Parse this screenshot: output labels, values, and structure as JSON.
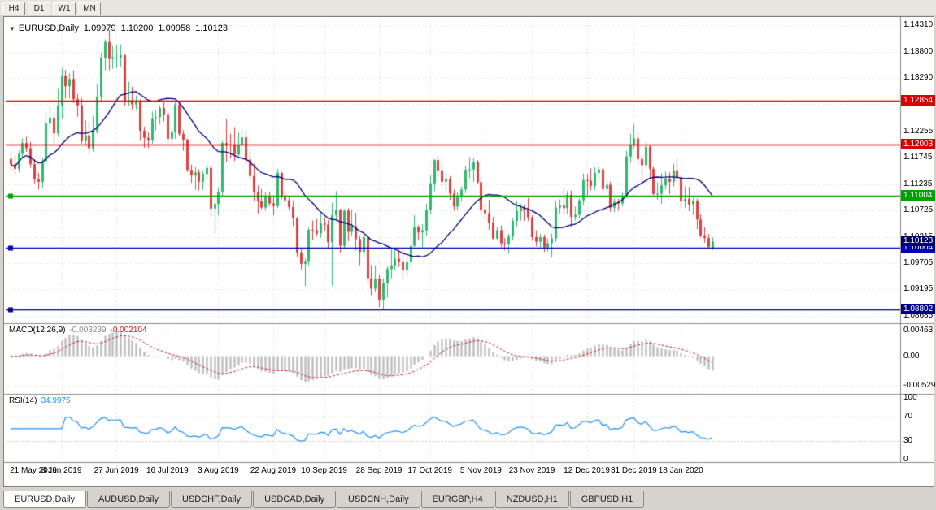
{
  "toolbar": {
    "timeframes": [
      "H4",
      "D1",
      "W1",
      "MN"
    ]
  },
  "chart": {
    "dropdown_icon": "▼",
    "symbol_period": "EURUSD,Daily",
    "ohlc": {
      "open": "1.09979",
      "high": "1.10200",
      "low": "1.09958",
      "close": "1.10123"
    }
  },
  "price_scale": {
    "ticks": [
      {
        "label": "1.14310",
        "value": 1.1431
      },
      {
        "label": "1.13800",
        "value": 1.138
      },
      {
        "label": "1.13290",
        "value": 1.1329
      },
      {
        "label": "1.12780",
        "value": 1.1278
      },
      {
        "label": "1.12255",
        "value": 1.12255
      },
      {
        "label": "1.11745",
        "value": 1.11745
      },
      {
        "label": "1.11235",
        "value": 1.11235
      },
      {
        "label": "1.10725",
        "value": 1.10725
      },
      {
        "label": "1.10215",
        "value": 1.10215
      },
      {
        "label": "1.09705",
        "value": 1.09705
      },
      {
        "label": "1.09195",
        "value": 1.09195
      },
      {
        "label": "1.08685",
        "value": 1.08685
      }
    ]
  },
  "levels": [
    {
      "label": "1.12854",
      "price": 1.12854,
      "color": "#d90000",
      "marker": false
    },
    {
      "label": "1.12003",
      "price": 1.12003,
      "color": "#d90000",
      "marker": false
    },
    {
      "label": "1.11004",
      "price": 1.11004,
      "color": "#00a000",
      "marker": true
    },
    {
      "label": "1.10004",
      "price": 1.10004,
      "color": "#0000b8",
      "marker": true
    },
    {
      "label": "1.08802",
      "price": 1.08802,
      "color": "#00008b",
      "marker": true
    }
  ],
  "current_price_tag": {
    "label": "1.10123",
    "price": 1.10123,
    "color": "#00006b"
  },
  "indicators": {
    "macd": {
      "label": "MACD(12,26,9)",
      "value_main": "-0.003239",
      "value_signal": "-0.002104",
      "scale": [
        {
          "label": "0.00463",
          "value": 0.00463
        },
        {
          "label": "0.00",
          "value": 0
        },
        {
          "label": "-0.00529",
          "value": -0.00529
        }
      ]
    },
    "rsi": {
      "label": "RSI(14)",
      "value": "34.9975",
      "scale": [
        {
          "label": "100",
          "value": 100
        },
        {
          "label": "70",
          "value": 70
        },
        {
          "label": "30",
          "value": 30
        },
        {
          "label": "0",
          "value": 0
        }
      ]
    }
  },
  "time_axis": {
    "ticks": [
      {
        "label": "21 May 2019",
        "bar": 0
      },
      {
        "label": "8 Jun 2019",
        "bar": 13
      },
      {
        "label": "27 Jun 2019",
        "bar": 27
      },
      {
        "label": "16 Jul 2019",
        "bar": 40
      },
      {
        "label": "3 Aug 2019",
        "bar": 53
      },
      {
        "label": "22 Aug 2019",
        "bar": 67
      },
      {
        "label": "10 Sep 2019",
        "bar": 80
      },
      {
        "label": "28 Sep 2019",
        "bar": 94
      },
      {
        "label": "17 Oct 2019",
        "bar": 107
      },
      {
        "label": "5 Nov 2019",
        "bar": 120
      },
      {
        "label": "23 Nov 2019",
        "bar": 133
      },
      {
        "label": "12 Dec 2019",
        "bar": 147
      },
      {
        "label": "31 Dec 2019",
        "bar": 159
      },
      {
        "label": "18 Jan 2020",
        "bar": 171
      }
    ]
  },
  "bottom_tabs": {
    "active_index": 0,
    "items": [
      "EURUSD,Daily",
      "AUDUSD,Daily",
      "USDCHF,Daily",
      "USDCAD,Daily",
      "USDCNH,Daily",
      "EURGBP,H4",
      "NZDUSD,H1",
      "GBPUSD,H1"
    ]
  },
  "chart_data": {
    "type": "candlestick",
    "title": "EURUSD,Daily",
    "symbol": "EURUSD",
    "timeframe": "Daily",
    "ylim": [
      1.08555,
      1.1444
    ],
    "up_color": "#2eb871",
    "down_color": "#dd4040",
    "grid_color": "#dcdcdc",
    "ma": {
      "period": 20,
      "color": "#00007a"
    },
    "macd": {
      "fast": 12,
      "slow": 26,
      "signal": 9,
      "hist_color": "#bdbdbd",
      "signal_color": "#cc2222",
      "ylim": [
        -0.0068,
        0.0058
      ]
    },
    "rsi": {
      "period": 14,
      "color": "#1e90ff",
      "levels": [
        70,
        30
      ],
      "ylim": [
        -4,
        105
      ]
    },
    "ohlc": [
      [
        1.1172,
        1.1188,
        1.115,
        1.1162
      ],
      [
        1.1162,
        1.118,
        1.1142,
        1.1153
      ],
      [
        1.1153,
        1.1188,
        1.1146,
        1.1182
      ],
      [
        1.1182,
        1.1212,
        1.1173,
        1.1203
      ],
      [
        1.1203,
        1.1215,
        1.1186,
        1.1193
      ],
      [
        1.1193,
        1.1205,
        1.1155,
        1.1162
      ],
      [
        1.1162,
        1.1172,
        1.1125,
        1.1133
      ],
      [
        1.1133,
        1.1145,
        1.1113,
        1.1128
      ],
      [
        1.1128,
        1.1174,
        1.1116,
        1.1168
      ],
      [
        1.1168,
        1.1263,
        1.116,
        1.1241
      ],
      [
        1.1241,
        1.1277,
        1.1233,
        1.1252
      ],
      [
        1.1252,
        1.1262,
        1.1201,
        1.1222
      ],
      [
        1.1222,
        1.1309,
        1.1215,
        1.1275
      ],
      [
        1.1275,
        1.1348,
        1.125,
        1.1334
      ],
      [
        1.1334,
        1.1345,
        1.1289,
        1.1313
      ],
      [
        1.1313,
        1.1338,
        1.129,
        1.1327
      ],
      [
        1.1327,
        1.1344,
        1.1281,
        1.1288
      ],
      [
        1.1288,
        1.1298,
        1.1254,
        1.1276
      ],
      [
        1.1276,
        1.129,
        1.1202,
        1.1207
      ],
      [
        1.1207,
        1.1247,
        1.12,
        1.1218
      ],
      [
        1.1218,
        1.1243,
        1.1181,
        1.1193
      ],
      [
        1.1193,
        1.1255,
        1.1186,
        1.1226
      ],
      [
        1.1226,
        1.1317,
        1.1221,
        1.1293
      ],
      [
        1.1293,
        1.1378,
        1.1283,
        1.1368
      ],
      [
        1.1368,
        1.1404,
        1.1344,
        1.1399
      ],
      [
        1.1399,
        1.1422,
        1.1344,
        1.1366
      ],
      [
        1.1366,
        1.1391,
        1.1347,
        1.1369
      ],
      [
        1.1369,
        1.1392,
        1.1348,
        1.1369
      ],
      [
        1.1369,
        1.1394,
        1.1351,
        1.1373
      ],
      [
        1.1373,
        1.1376,
        1.1275,
        1.1285
      ],
      [
        1.1285,
        1.1322,
        1.1275,
        1.1286
      ],
      [
        1.1286,
        1.1312,
        1.1268,
        1.1278
      ],
      [
        1.1278,
        1.1295,
        1.1268,
        1.1283
      ],
      [
        1.1283,
        1.1288,
        1.1207,
        1.1227
      ],
      [
        1.1227,
        1.1235,
        1.1194,
        1.1213
      ],
      [
        1.1213,
        1.1224,
        1.1193,
        1.1208
      ],
      [
        1.1208,
        1.1264,
        1.1202,
        1.1251
      ],
      [
        1.1251,
        1.1268,
        1.1227,
        1.1253
      ],
      [
        1.1253,
        1.1276,
        1.1239,
        1.1271
      ],
      [
        1.1271,
        1.1284,
        1.1245,
        1.1259
      ],
      [
        1.1259,
        1.1264,
        1.1202,
        1.1211
      ],
      [
        1.1211,
        1.1233,
        1.1198,
        1.1225
      ],
      [
        1.1225,
        1.1282,
        1.1211,
        1.1277
      ],
      [
        1.1277,
        1.1283,
        1.1216,
        1.1221
      ],
      [
        1.1221,
        1.1228,
        1.1188,
        1.1209
      ],
      [
        1.1209,
        1.1212,
        1.1147,
        1.1151
      ],
      [
        1.1151,
        1.1161,
        1.1126,
        1.114
      ],
      [
        1.114,
        1.1156,
        1.1112,
        1.1146
      ],
      [
        1.1146,
        1.1152,
        1.1111,
        1.1128
      ],
      [
        1.1128,
        1.115,
        1.1112,
        1.1143
      ],
      [
        1.1143,
        1.1162,
        1.1131,
        1.1155
      ],
      [
        1.1155,
        1.1159,
        1.106,
        1.1076
      ],
      [
        1.1076,
        1.1096,
        1.1027,
        1.1085
      ],
      [
        1.1085,
        1.1116,
        1.1063,
        1.1108
      ],
      [
        1.1108,
        1.1207,
        1.1101,
        1.1203
      ],
      [
        1.1203,
        1.125,
        1.1166,
        1.12
      ],
      [
        1.12,
        1.1221,
        1.1173,
        1.1199
      ],
      [
        1.1199,
        1.1234,
        1.1168,
        1.1181
      ],
      [
        1.1181,
        1.1223,
        1.1178,
        1.12
      ],
      [
        1.12,
        1.123,
        1.1192,
        1.1214
      ],
      [
        1.1214,
        1.1228,
        1.1162,
        1.1171
      ],
      [
        1.1171,
        1.1191,
        1.1131,
        1.1139
      ],
      [
        1.1139,
        1.1163,
        1.109,
        1.1108
      ],
      [
        1.1108,
        1.1121,
        1.1066,
        1.109
      ],
      [
        1.109,
        1.1114,
        1.1075,
        1.1078
      ],
      [
        1.1078,
        1.1108,
        1.1072,
        1.11
      ],
      [
        1.11,
        1.1109,
        1.1081,
        1.1086
      ],
      [
        1.1086,
        1.1098,
        1.1063,
        1.1081
      ],
      [
        1.1081,
        1.1153,
        1.1077,
        1.1145
      ],
      [
        1.1145,
        1.1147,
        1.1094,
        1.1101
      ],
      [
        1.1101,
        1.111,
        1.1087,
        1.1092
      ],
      [
        1.1092,
        1.1098,
        1.1073,
        1.1079
      ],
      [
        1.1079,
        1.109,
        1.1042,
        1.1057
      ],
      [
        1.1057,
        1.106,
        1.0983,
        1.0991
      ],
      [
        1.0991,
        1.0998,
        1.0958,
        1.0969
      ],
      [
        1.0969,
        1.0979,
        1.0926,
        1.0973
      ],
      [
        1.0973,
        1.1039,
        1.0966,
        1.1035
      ],
      [
        1.1035,
        1.1053,
        1.1015,
        1.1034
      ],
      [
        1.1034,
        1.1056,
        1.1022,
        1.1028
      ],
      [
        1.1028,
        1.1067,
        1.1019,
        1.1047
      ],
      [
        1.1047,
        1.1059,
        1.1032,
        1.1045
      ],
      [
        1.1045,
        1.1054,
        1.0999,
        1.1011
      ],
      [
        1.1011,
        1.1087,
        1.0927,
        1.1063
      ],
      [
        1.1063,
        1.111,
        1.1053,
        1.1073
      ],
      [
        1.1073,
        1.1076,
        1.099,
        1.1004
      ],
      [
        1.1004,
        1.1075,
        1.0998,
        1.1072
      ],
      [
        1.1072,
        1.1077,
        1.1013,
        1.1031
      ],
      [
        1.1031,
        1.1074,
        1.1023,
        1.1042
      ],
      [
        1.1042,
        1.1068,
        1.0995,
        1.1017
      ],
      [
        1.1017,
        1.1024,
        1.0966,
        1.0992
      ],
      [
        1.0992,
        1.1025,
        1.0982,
        1.1021
      ],
      [
        1.1021,
        1.1024,
        1.0929,
        1.0941
      ],
      [
        1.0941,
        1.0967,
        1.0908,
        1.0921
      ],
      [
        1.0921,
        1.0966,
        1.0914,
        1.094
      ],
      [
        1.094,
        1.0947,
        1.0885,
        1.0899
      ],
      [
        1.0899,
        1.0941,
        1.088,
        1.0932
      ],
      [
        1.0932,
        1.0964,
        1.0904,
        1.0959
      ],
      [
        1.0959,
        1.0999,
        1.0941,
        1.0966
      ],
      [
        1.0966,
        1.0998,
        1.0957,
        1.0979
      ],
      [
        1.0979,
        1.0996,
        1.0963,
        1.0972
      ],
      [
        1.0972,
        1.0996,
        1.0941,
        1.0957
      ],
      [
        1.0957,
        1.0984,
        1.0944,
        1.0972
      ],
      [
        1.0972,
        1.1034,
        1.0961,
        1.1004
      ],
      [
        1.1004,
        1.1063,
        1.1002,
        1.104
      ],
      [
        1.104,
        1.1044,
        1.1014,
        1.103
      ],
      [
        1.103,
        1.1046,
        1.1001,
        1.1034
      ],
      [
        1.1034,
        1.1085,
        1.1023,
        1.1073
      ],
      [
        1.1073,
        1.114,
        1.1065,
        1.1125
      ],
      [
        1.1125,
        1.1172,
        1.111,
        1.117
      ],
      [
        1.117,
        1.1179,
        1.1138,
        1.115
      ],
      [
        1.115,
        1.1164,
        1.1119,
        1.1128
      ],
      [
        1.1128,
        1.1146,
        1.1105,
        1.1133
      ],
      [
        1.1133,
        1.1139,
        1.1093,
        1.1105
      ],
      [
        1.1105,
        1.1113,
        1.1072,
        1.108
      ],
      [
        1.108,
        1.1108,
        1.1073,
        1.11
      ],
      [
        1.11,
        1.1119,
        1.1091,
        1.1113
      ],
      [
        1.1113,
        1.1159,
        1.1106,
        1.1151
      ],
      [
        1.1151,
        1.1176,
        1.1135,
        1.1152
      ],
      [
        1.1152,
        1.1174,
        1.1128,
        1.1166
      ],
      [
        1.1166,
        1.117,
        1.1124,
        1.1127
      ],
      [
        1.1127,
        1.114,
        1.1064,
        1.1074
      ],
      [
        1.1074,
        1.1085,
        1.1054,
        1.1067
      ],
      [
        1.1067,
        1.1093,
        1.1035,
        1.1049
      ],
      [
        1.1049,
        1.106,
        1.1016,
        1.1018
      ],
      [
        1.1018,
        1.1041,
        1.1016,
        1.1034
      ],
      [
        1.1034,
        1.1043,
        1.1002,
        1.1009
      ],
      [
        1.1009,
        1.1019,
        1.0995,
        1.1007
      ],
      [
        1.1007,
        1.1027,
        1.0989,
        1.1022
      ],
      [
        1.1022,
        1.1057,
        1.1014,
        1.1052
      ],
      [
        1.1052,
        1.109,
        1.1041,
        1.1071
      ],
      [
        1.1071,
        1.1085,
        1.1053,
        1.1077
      ],
      [
        1.1077,
        1.1083,
        1.1052,
        1.1074
      ],
      [
        1.1074,
        1.1097,
        1.1052,
        1.1059
      ],
      [
        1.1059,
        1.1063,
        1.1014,
        1.1021
      ],
      [
        1.1021,
        1.1034,
        1.1003,
        1.1012
      ],
      [
        1.1012,
        1.1027,
        1.1001,
        1.1021
      ],
      [
        1.1021,
        1.1026,
        1.0992,
        1.1001
      ],
      [
        1.1001,
        1.1018,
        1.0993,
        1.1009
      ],
      [
        1.1009,
        1.1028,
        1.0981,
        1.1018
      ],
      [
        1.1018,
        1.109,
        1.1011,
        1.1078
      ],
      [
        1.1078,
        1.1094,
        1.1066,
        1.1082
      ],
      [
        1.1082,
        1.1116,
        1.1063,
        1.1077
      ],
      [
        1.1077,
        1.111,
        1.1066,
        1.1103
      ],
      [
        1.1103,
        1.1111,
        1.104,
        1.106
      ],
      [
        1.106,
        1.108,
        1.1053,
        1.1064
      ],
      [
        1.1064,
        1.1096,
        1.1057,
        1.1092
      ],
      [
        1.1092,
        1.1144,
        1.1083,
        1.1131
      ],
      [
        1.1131,
        1.1143,
        1.1102,
        1.113
      ],
      [
        1.113,
        1.1154,
        1.1111,
        1.112
      ],
      [
        1.112,
        1.1156,
        1.1112,
        1.1145
      ],
      [
        1.1145,
        1.1159,
        1.1129,
        1.1152
      ],
      [
        1.1152,
        1.1155,
        1.111,
        1.1114
      ],
      [
        1.1114,
        1.1131,
        1.1106,
        1.1122
      ],
      [
        1.1122,
        1.1128,
        1.107,
        1.1078
      ],
      [
        1.1078,
        1.1096,
        1.1069,
        1.1089
      ],
      [
        1.1089,
        1.1095,
        1.1072,
        1.1086
      ],
      [
        1.1086,
        1.1107,
        1.108,
        1.1098
      ],
      [
        1.1098,
        1.1188,
        1.1096,
        1.1177
      ],
      [
        1.1177,
        1.1221,
        1.1165,
        1.1199
      ],
      [
        1.1199,
        1.1239,
        1.1193,
        1.1212
      ],
      [
        1.1212,
        1.1224,
        1.1162,
        1.1172
      ],
      [
        1.1172,
        1.118,
        1.1125,
        1.116
      ],
      [
        1.116,
        1.1205,
        1.1152,
        1.1196
      ],
      [
        1.1196,
        1.1199,
        1.1135,
        1.1153
      ],
      [
        1.1153,
        1.1157,
        1.1103,
        1.1104
      ],
      [
        1.1104,
        1.1127,
        1.1093,
        1.1105
      ],
      [
        1.1105,
        1.1145,
        1.1085,
        1.1121
      ],
      [
        1.1121,
        1.1148,
        1.1113,
        1.1134
      ],
      [
        1.1134,
        1.1146,
        1.1104,
        1.1128
      ],
      [
        1.1128,
        1.1163,
        1.1119,
        1.115
      ],
      [
        1.115,
        1.1173,
        1.1128,
        1.1136
      ],
      [
        1.1136,
        1.1141,
        1.1077,
        1.109
      ],
      [
        1.109,
        1.1119,
        1.1077,
        1.1095
      ],
      [
        1.1095,
        1.1118,
        1.1071,
        1.1084
      ],
      [
        1.1084,
        1.1097,
        1.1063,
        1.1091
      ],
      [
        1.1091,
        1.1095,
        1.1036,
        1.1055
      ],
      [
        1.1055,
        1.1065,
        1.102,
        1.1024
      ],
      [
        1.1024,
        1.104,
        1.101,
        1.1019
      ],
      [
        1.1019,
        1.1027,
        1.0998,
        1.1002
      ],
      [
        1.09979,
        1.102,
        1.09958,
        1.10123
      ]
    ]
  }
}
